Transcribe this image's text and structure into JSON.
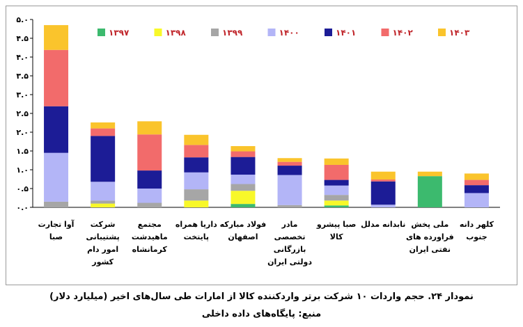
{
  "caption": {
    "title": "نمودار ۲۴. حجم واردات ۱۰ شرکت برتر واردکننده کالا از امارات طی سال‌های اخیر (میلیارد دلار)",
    "source": "منبع: پایگاه‌های داده داخلی"
  },
  "chart_data": {
    "type": "bar",
    "stacked": true,
    "legend_position": "top",
    "grid": false,
    "ylim": [
      0,
      5.0
    ],
    "yticks": [
      "۰.۰",
      "۰.۵",
      "۱.۰",
      "۱.۵",
      "۲.۰",
      "۲.۵",
      "۳.۰",
      "۳.۵",
      "۴.۰",
      "۴.۵",
      "۵.۰"
    ],
    "categories": [
      [
        "آوا تجارت",
        "صبا"
      ],
      [
        "شرکت",
        "پشتیبانی",
        "امور دام",
        "کشور"
      ],
      [
        "مجتمع",
        "ماهیدشت",
        "کرمانشاه"
      ],
      [
        "داریا همراه",
        "پایتخت"
      ],
      [
        "فولاد مبارکه",
        "اصفهان"
      ],
      [
        "مادر",
        "تخصصی",
        "بازرگانی",
        "دولتی ایران"
      ],
      [
        "صبا پیشرو",
        "کالا"
      ],
      [
        "نابدانه مدلل"
      ],
      [
        "ملی پخش",
        "فراورده های",
        "نفتی ایران"
      ],
      [
        "کلهر دانه",
        "جنوب"
      ]
    ],
    "series": [
      {
        "name": "۱۳۹۷",
        "color": "#3cba6e",
        "values": [
          0,
          0,
          0,
          0,
          0.09,
          0,
          0.05,
          0,
          0.83,
          0
        ]
      },
      {
        "name": "۱۳۹۸",
        "color": "#f8f829",
        "values": [
          0,
          0.1,
          0,
          0.18,
          0.35,
          0,
          0.13,
          0,
          0,
          0
        ]
      },
      {
        "name": "۱۳۹۹",
        "color": "#a6a6a6",
        "values": [
          0.15,
          0.08,
          0.12,
          0.3,
          0.18,
          0.06,
          0.15,
          0,
          0,
          0
        ]
      },
      {
        "name": "۱۴۰۰",
        "color": "#b3b5f7",
        "values": [
          1.3,
          0.5,
          0.38,
          0.45,
          0.25,
          0.8,
          0.25,
          0.07,
          0,
          0.38
        ]
      },
      {
        "name": "۱۴۰۱",
        "color": "#1c1c96",
        "values": [
          1.24,
          1.22,
          0.48,
          0.4,
          0.47,
          0.25,
          0.15,
          0.62,
          0,
          0.21
        ]
      },
      {
        "name": "۱۴۰۲",
        "color": "#f26b6b",
        "values": [
          1.5,
          0.2,
          0.96,
          0.33,
          0.15,
          0.1,
          0.4,
          0.05,
          0,
          0.14
        ]
      },
      {
        "name": "۱۴۰۳",
        "color": "#fac42c",
        "values": [
          0.66,
          0.16,
          0.35,
          0.27,
          0.14,
          0.1,
          0.17,
          0.21,
          0.12,
          0.17
        ]
      }
    ]
  }
}
